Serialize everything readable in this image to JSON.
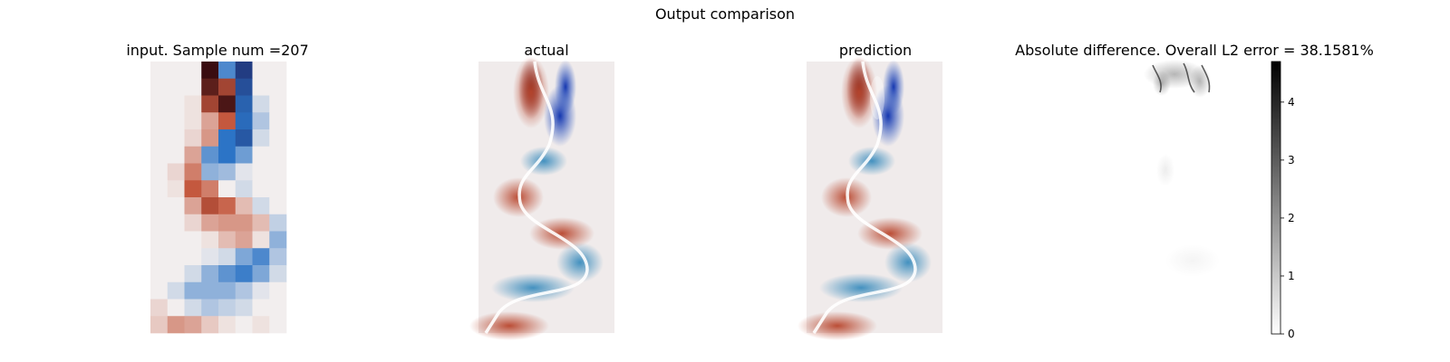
{
  "figure": {
    "suptitle": "Output comparison"
  },
  "chart_data": [
    {
      "type": "heatmap",
      "title": "input. Sample num =207",
      "xlabel": "",
      "ylabel": "",
      "grid": false,
      "colormap": "diverging red-white-blue",
      "color_low": "#1f2a6b",
      "color_mid": "#f2eeee",
      "color_high": "#3a0c10",
      "rows": 16,
      "cols": 8,
      "values": [
        [
          0.0,
          0.0,
          0.0,
          1.0,
          -0.5,
          -0.9,
          0.0,
          0.0
        ],
        [
          0.0,
          0.0,
          0.0,
          0.9,
          0.7,
          -0.8,
          0.0,
          0.0
        ],
        [
          0.0,
          0.0,
          0.05,
          0.7,
          0.95,
          -0.7,
          -0.1,
          0.0
        ],
        [
          0.0,
          0.0,
          0.05,
          0.3,
          0.6,
          -0.65,
          -0.2,
          0.0
        ],
        [
          0.0,
          0.0,
          0.1,
          0.35,
          -0.6,
          -0.75,
          -0.1,
          0.0
        ],
        [
          0.0,
          0.0,
          0.3,
          -0.45,
          -0.6,
          -0.4,
          0.0,
          0.0
        ],
        [
          0.0,
          0.1,
          0.45,
          -0.3,
          -0.25,
          -0.05,
          0.0,
          0.0
        ],
        [
          0.0,
          0.05,
          0.6,
          0.45,
          0.0,
          -0.1,
          0.0,
          0.0
        ],
        [
          0.0,
          0.0,
          0.3,
          0.65,
          0.55,
          0.2,
          -0.1,
          0.0
        ],
        [
          0.0,
          0.0,
          0.1,
          0.3,
          0.35,
          0.35,
          0.2,
          -0.15
        ],
        [
          0.0,
          0.0,
          0.0,
          0.05,
          0.2,
          0.3,
          0.05,
          -0.3
        ],
        [
          0.0,
          0.0,
          0.0,
          -0.05,
          -0.1,
          -0.35,
          -0.5,
          -0.2
        ],
        [
          0.0,
          0.0,
          -0.1,
          -0.3,
          -0.45,
          -0.55,
          -0.35,
          -0.1
        ],
        [
          0.0,
          -0.1,
          -0.3,
          -0.3,
          -0.3,
          -0.2,
          -0.05,
          0.0
        ],
        [
          0.1,
          0.0,
          -0.1,
          -0.2,
          -0.15,
          -0.1,
          0.0,
          0.0
        ],
        [
          0.15,
          0.35,
          0.3,
          0.15,
          0.05,
          0.0,
          0.05,
          0.0
        ]
      ]
    },
    {
      "type": "heatmap",
      "title": "actual",
      "xlabel": "",
      "ylabel": "",
      "grid": false,
      "colormap": "diverging red-white-blue"
    },
    {
      "type": "heatmap",
      "title": "prediction",
      "xlabel": "",
      "ylabel": "",
      "grid": false,
      "colormap": "diverging red-white-blue"
    },
    {
      "type": "heatmap",
      "title": "Absolute difference. Overall L2 error = 38.1581%",
      "xlabel": "",
      "ylabel": "",
      "grid": false,
      "colormap": "gray_r",
      "colorbar": {
        "ticks": [
          "0",
          "1",
          "2",
          "3",
          "4"
        ],
        "tick_values": [
          0,
          1,
          2,
          3,
          4
        ],
        "range": [
          0,
          4.7
        ]
      }
    }
  ]
}
